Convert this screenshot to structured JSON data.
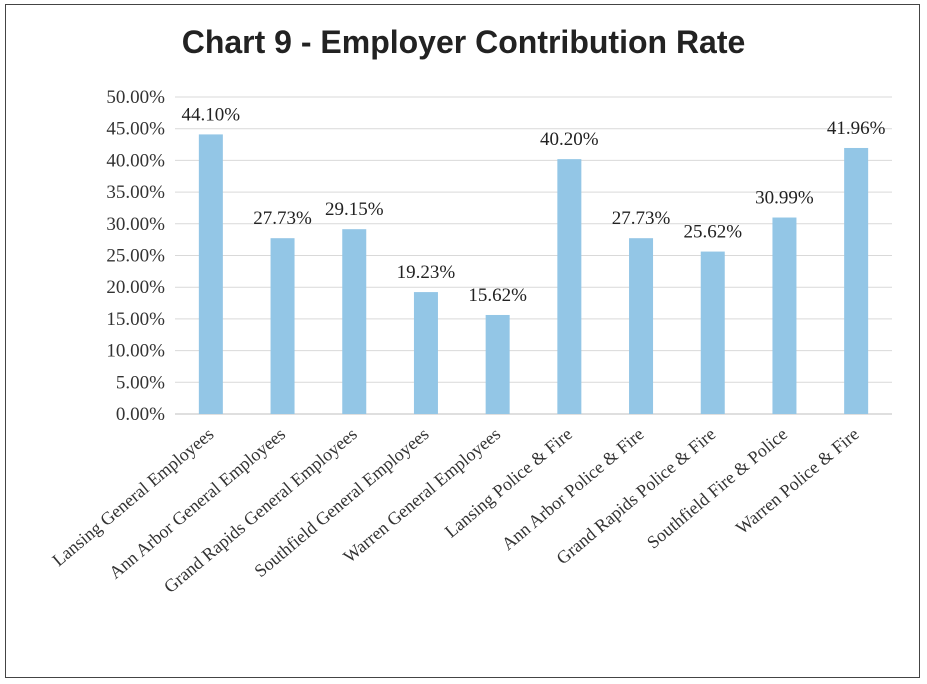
{
  "chart_data": {
    "type": "bar",
    "title": "Chart 9 - Employer Contribution Rate",
    "categories": [
      "Lansing General Employees",
      "Ann Arbor General Employees",
      "Grand Rapids General Employees",
      "Southfield General Employees",
      "Warren General Employees",
      "Lansing Police & Fire",
      "Ann Arbor Police & Fire",
      "Grand Rapids Police & Fire",
      "Southfield Fire & Police",
      "Warren Police & Fire"
    ],
    "values": [
      44.1,
      27.73,
      29.15,
      19.23,
      15.62,
      40.2,
      27.73,
      25.62,
      30.99,
      41.96
    ],
    "data_labels": [
      "44.10%",
      "27.73%",
      "29.15%",
      "19.23%",
      "15.62%",
      "40.20%",
      "27.73%",
      "25.62%",
      "30.99%",
      "41.96%"
    ],
    "yticks": [
      "0.00%",
      "5.00%",
      "10.00%",
      "15.00%",
      "20.00%",
      "25.00%",
      "30.00%",
      "35.00%",
      "40.00%",
      "45.00%",
      "50.00%"
    ],
    "ylim": [
      0,
      50
    ],
    "grid": true,
    "bar_color": "#93c6e6",
    "grid_color": "#d9d9d9"
  }
}
